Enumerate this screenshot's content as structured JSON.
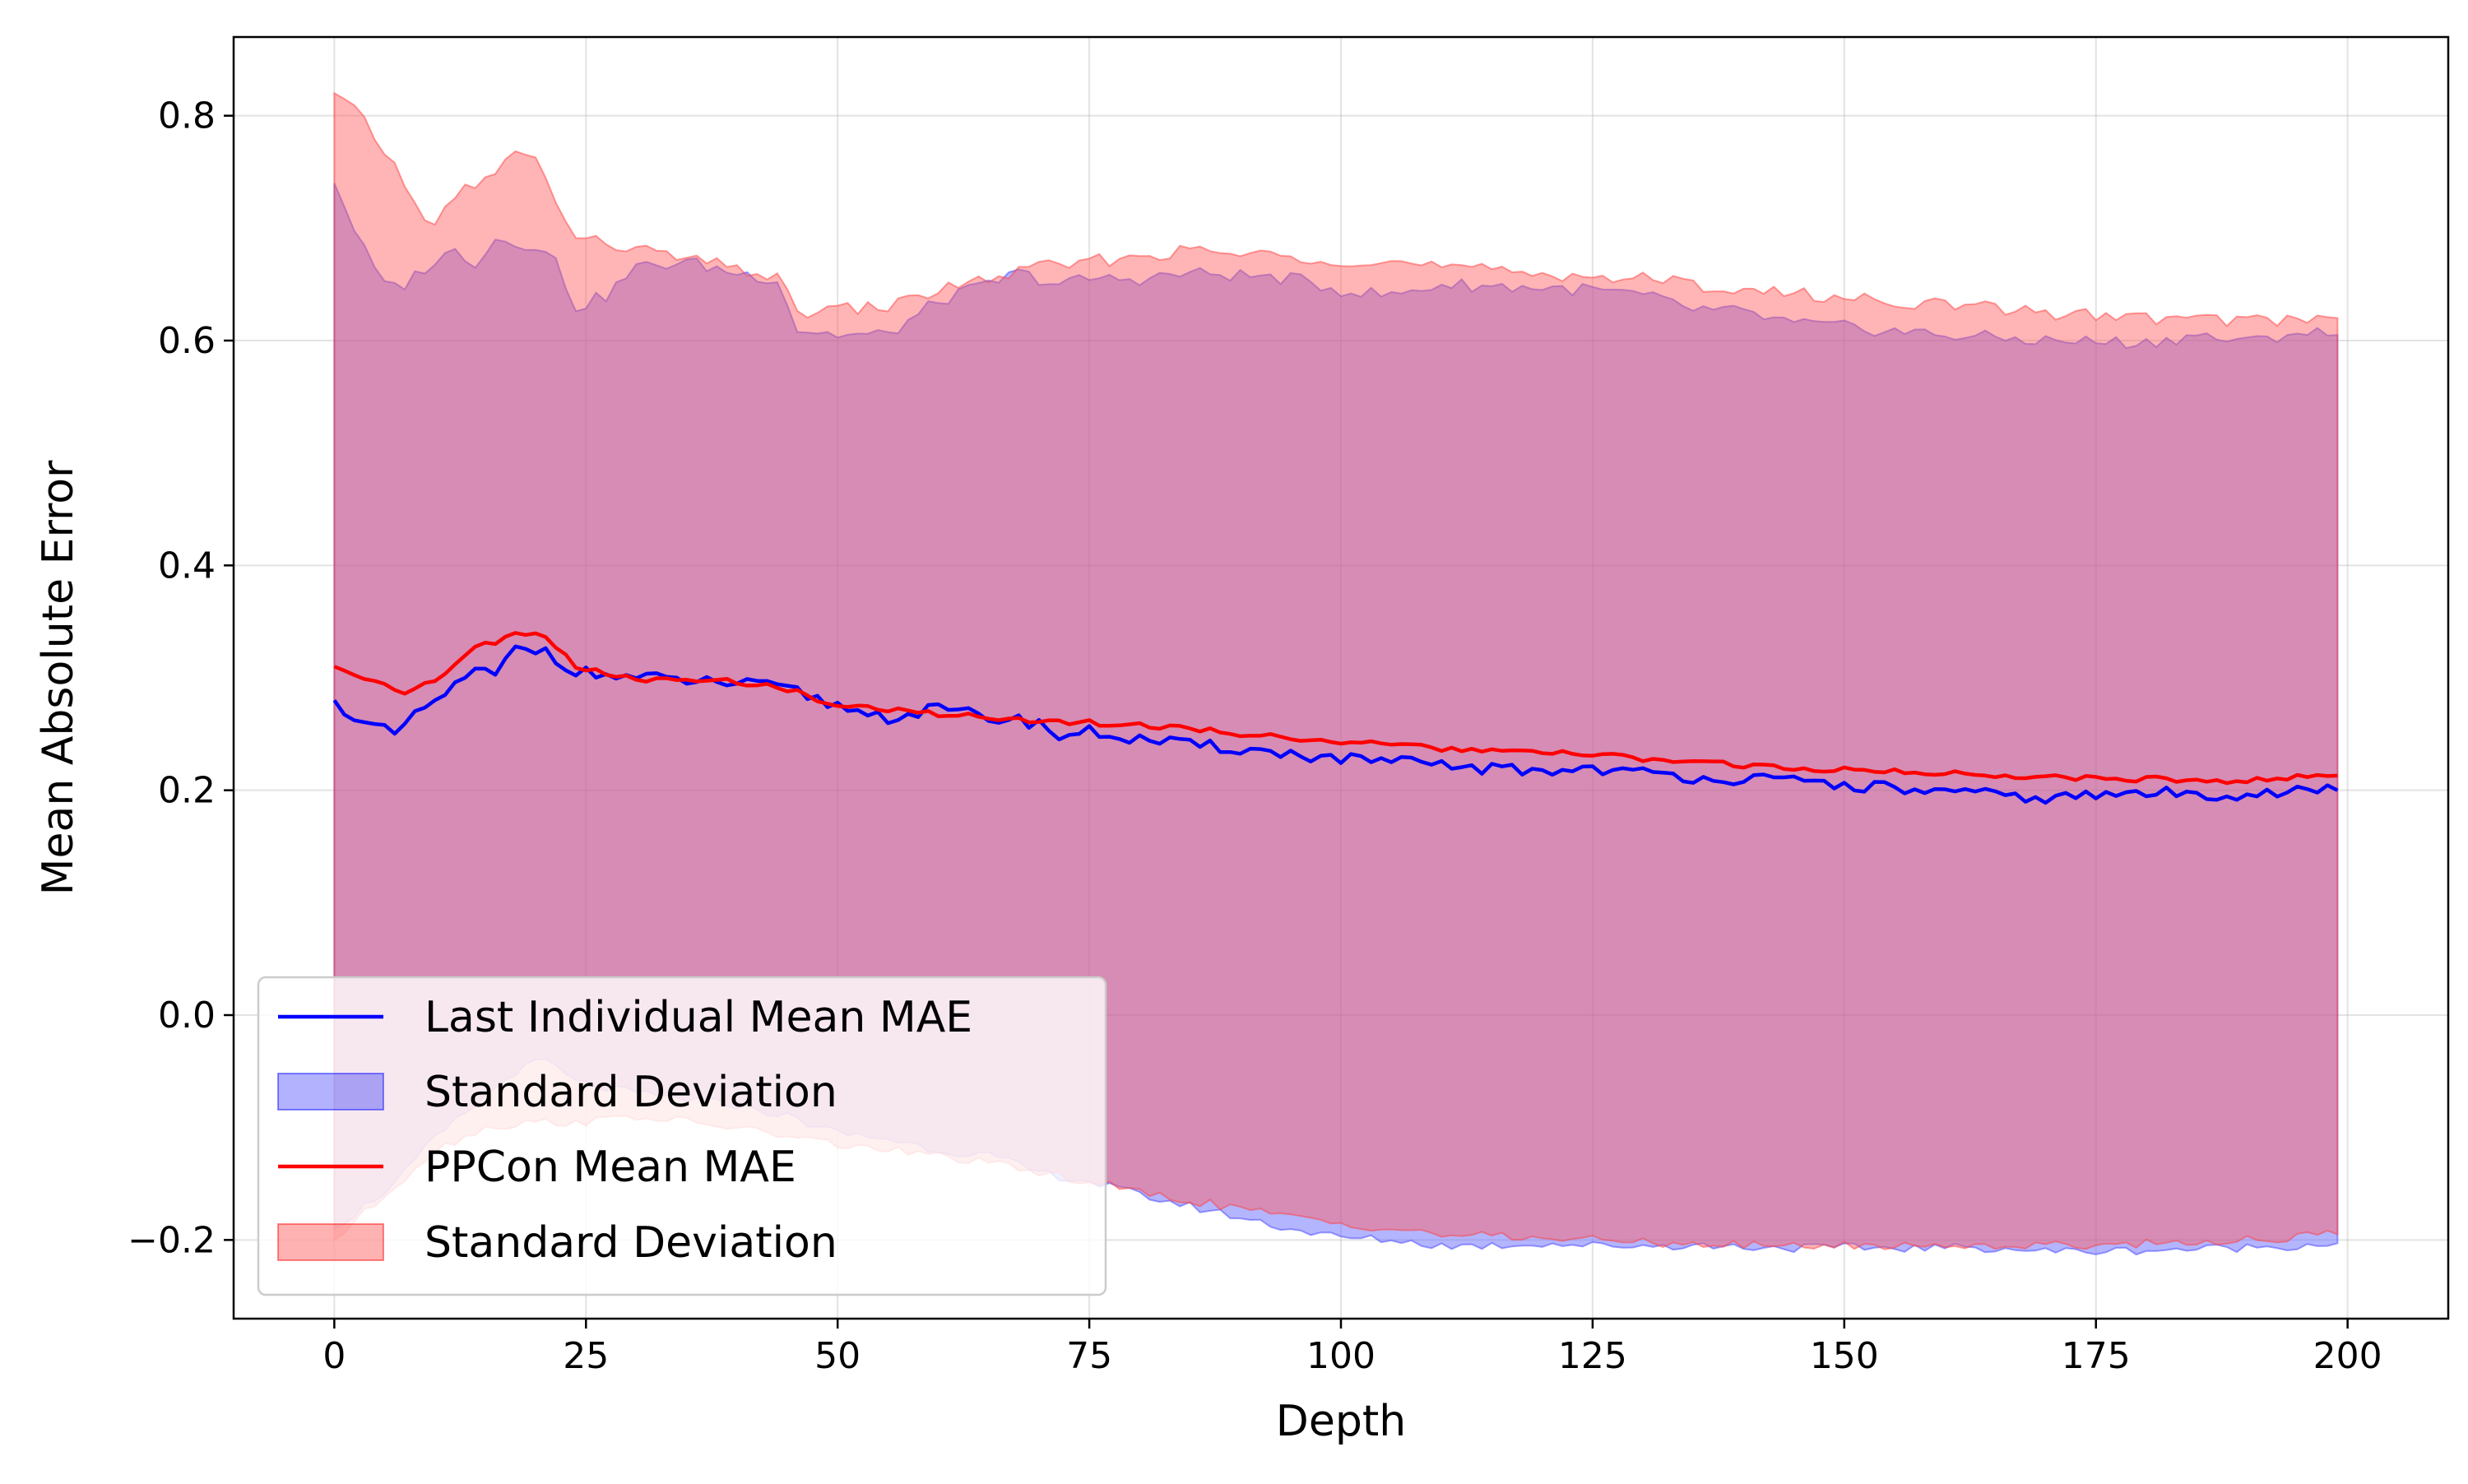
{
  "chart_data": {
    "type": "area",
    "title": "",
    "xlabel": "Depth",
    "ylabel": "Mean Absolute Error",
    "xlim": [
      -10,
      210
    ],
    "ylim": [
      -0.27,
      0.87
    ],
    "xticks": [
      0,
      25,
      50,
      75,
      100,
      125,
      150,
      175,
      200
    ],
    "xtick_labels": [
      "0",
      "25",
      "50",
      "75",
      "100",
      "125",
      "150",
      "175",
      "200"
    ],
    "yticks": [
      -0.2,
      0.0,
      0.2,
      0.4,
      0.6,
      0.8
    ],
    "ytick_labels": [
      "−0.2",
      "0.0",
      "0.2",
      "0.4",
      "0.6",
      "0.8"
    ],
    "grid": true,
    "legend_position": "lower-left",
    "legend": [
      {
        "label": "Last Individual Mean MAE",
        "kind": "line",
        "color": "#0000ff"
      },
      {
        "label": "Standard Deviation",
        "kind": "patch",
        "color": "#0000ff"
      },
      {
        "label": "PPCon Mean MAE",
        "kind": "line",
        "color": "#ff0000"
      },
      {
        "label": "Standard Deviation",
        "kind": "patch",
        "color": "#ff0000"
      }
    ],
    "x_range": [
      0,
      199
    ],
    "series": [
      {
        "name": "Last Individual Mean MAE",
        "color": "#0000ff",
        "mean_knots": [
          [
            0,
            0.28
          ],
          [
            3,
            0.258
          ],
          [
            6,
            0.25
          ],
          [
            10,
            0.28
          ],
          [
            14,
            0.305
          ],
          [
            16,
            0.303
          ],
          [
            18,
            0.325
          ],
          [
            21,
            0.325
          ],
          [
            24,
            0.305
          ],
          [
            30,
            0.3
          ],
          [
            40,
            0.295
          ],
          [
            45,
            0.29
          ],
          [
            50,
            0.275
          ],
          [
            55,
            0.265
          ],
          [
            60,
            0.272
          ],
          [
            65,
            0.265
          ],
          [
            70,
            0.26
          ],
          [
            72,
            0.248
          ],
          [
            75,
            0.252
          ],
          [
            80,
            0.245
          ],
          [
            85,
            0.24
          ],
          [
            90,
            0.237
          ],
          [
            95,
            0.232
          ],
          [
            100,
            0.228
          ],
          [
            105,
            0.225
          ],
          [
            110,
            0.222
          ],
          [
            115,
            0.219
          ],
          [
            120,
            0.217
          ],
          [
            125,
            0.22
          ],
          [
            130,
            0.215
          ],
          [
            135,
            0.212
          ],
          [
            140,
            0.21
          ],
          [
            150,
            0.205
          ],
          [
            160,
            0.198
          ],
          [
            170,
            0.193
          ],
          [
            175,
            0.195
          ],
          [
            180,
            0.198
          ],
          [
            185,
            0.196
          ],
          [
            190,
            0.197
          ],
          [
            199,
            0.2
          ]
        ],
        "sd_upper_knots": [
          [
            0,
            0.74
          ],
          [
            3,
            0.68
          ],
          [
            5,
            0.648
          ],
          [
            7,
            0.65
          ],
          [
            9,
            0.665
          ],
          [
            12,
            0.68
          ],
          [
            14,
            0.67
          ],
          [
            16,
            0.69
          ],
          [
            20,
            0.685
          ],
          [
            22,
            0.67
          ],
          [
            24,
            0.63
          ],
          [
            27,
            0.64
          ],
          [
            30,
            0.665
          ],
          [
            35,
            0.67
          ],
          [
            40,
            0.66
          ],
          [
            44,
            0.655
          ],
          [
            46,
            0.61
          ],
          [
            50,
            0.605
          ],
          [
            55,
            0.605
          ],
          [
            60,
            0.635
          ],
          [
            65,
            0.65
          ],
          [
            68,
            0.66
          ],
          [
            72,
            0.65
          ],
          [
            75,
            0.655
          ],
          [
            80,
            0.655
          ],
          [
            85,
            0.66
          ],
          [
            90,
            0.658
          ],
          [
            95,
            0.655
          ],
          [
            100,
            0.645
          ],
          [
            105,
            0.64
          ],
          [
            110,
            0.65
          ],
          [
            120,
            0.647
          ],
          [
            125,
            0.645
          ],
          [
            130,
            0.64
          ],
          [
            135,
            0.628
          ],
          [
            140,
            0.625
          ],
          [
            145,
            0.615
          ],
          [
            150,
            0.612
          ],
          [
            160,
            0.605
          ],
          [
            170,
            0.6
          ],
          [
            180,
            0.598
          ],
          [
            185,
            0.605
          ],
          [
            190,
            0.598
          ],
          [
            195,
            0.608
          ],
          [
            199,
            0.605
          ]
        ],
        "sd_lower_knots": [
          [
            0,
            -0.19
          ],
          [
            3,
            -0.17
          ],
          [
            6,
            -0.15
          ],
          [
            10,
            -0.11
          ],
          [
            14,
            -0.08
          ],
          [
            18,
            -0.05
          ],
          [
            21,
            -0.04
          ],
          [
            24,
            -0.06
          ],
          [
            30,
            -0.07
          ],
          [
            40,
            -0.08
          ],
          [
            45,
            -0.09
          ],
          [
            50,
            -0.105
          ],
          [
            55,
            -0.11
          ],
          [
            60,
            -0.12
          ],
          [
            65,
            -0.125
          ],
          [
            70,
            -0.14
          ],
          [
            75,
            -0.148
          ],
          [
            80,
            -0.16
          ],
          [
            85,
            -0.17
          ],
          [
            90,
            -0.18
          ],
          [
            95,
            -0.19
          ],
          [
            100,
            -0.198
          ],
          [
            105,
            -0.2
          ],
          [
            110,
            -0.205
          ],
          [
            115,
            -0.205
          ],
          [
            120,
            -0.203
          ],
          [
            125,
            -0.205
          ],
          [
            135,
            -0.205
          ],
          [
            145,
            -0.207
          ],
          [
            155,
            -0.207
          ],
          [
            165,
            -0.207
          ],
          [
            170,
            -0.21
          ],
          [
            175,
            -0.21
          ],
          [
            185,
            -0.208
          ],
          [
            195,
            -0.205
          ],
          [
            199,
            -0.203
          ]
        ]
      },
      {
        "name": "PPCon Mean MAE",
        "color": "#ff0000",
        "mean_knots": [
          [
            0,
            0.31
          ],
          [
            3,
            0.3
          ],
          [
            7,
            0.288
          ],
          [
            10,
            0.296
          ],
          [
            14,
            0.328
          ],
          [
            16,
            0.332
          ],
          [
            18,
            0.342
          ],
          [
            21,
            0.335
          ],
          [
            24,
            0.31
          ],
          [
            30,
            0.298
          ],
          [
            40,
            0.297
          ],
          [
            45,
            0.29
          ],
          [
            50,
            0.275
          ],
          [
            55,
            0.272
          ],
          [
            60,
            0.268
          ],
          [
            65,
            0.265
          ],
          [
            70,
            0.262
          ],
          [
            75,
            0.26
          ],
          [
            80,
            0.258
          ],
          [
            85,
            0.255
          ],
          [
            90,
            0.25
          ],
          [
            95,
            0.247
          ],
          [
            100,
            0.243
          ],
          [
            105,
            0.24
          ],
          [
            110,
            0.237
          ],
          [
            120,
            0.233
          ],
          [
            125,
            0.232
          ],
          [
            130,
            0.228
          ],
          [
            135,
            0.225
          ],
          [
            140,
            0.222
          ],
          [
            150,
            0.218
          ],
          [
            160,
            0.215
          ],
          [
            170,
            0.212
          ],
          [
            180,
            0.21
          ],
          [
            190,
            0.208
          ],
          [
            195,
            0.212
          ],
          [
            199,
            0.213
          ]
        ],
        "sd_upper_knots": [
          [
            0,
            0.82
          ],
          [
            3,
            0.795
          ],
          [
            6,
            0.755
          ],
          [
            8,
            0.72
          ],
          [
            10,
            0.705
          ],
          [
            13,
            0.735
          ],
          [
            16,
            0.745
          ],
          [
            18,
            0.772
          ],
          [
            20,
            0.76
          ],
          [
            22,
            0.725
          ],
          [
            24,
            0.69
          ],
          [
            28,
            0.685
          ],
          [
            32,
            0.678
          ],
          [
            36,
            0.67
          ],
          [
            40,
            0.665
          ],
          [
            44,
            0.655
          ],
          [
            46,
            0.625
          ],
          [
            50,
            0.628
          ],
          [
            55,
            0.63
          ],
          [
            60,
            0.645
          ],
          [
            65,
            0.655
          ],
          [
            70,
            0.665
          ],
          [
            75,
            0.67
          ],
          [
            80,
            0.675
          ],
          [
            85,
            0.68
          ],
          [
            90,
            0.677
          ],
          [
            95,
            0.675
          ],
          [
            100,
            0.672
          ],
          [
            105,
            0.67
          ],
          [
            110,
            0.665
          ],
          [
            115,
            0.662
          ],
          [
            120,
            0.66
          ],
          [
            125,
            0.657
          ],
          [
            130,
            0.655
          ],
          [
            135,
            0.65
          ],
          [
            140,
            0.645
          ],
          [
            150,
            0.638
          ],
          [
            160,
            0.632
          ],
          [
            170,
            0.625
          ],
          [
            180,
            0.62
          ],
          [
            190,
            0.618
          ],
          [
            199,
            0.62
          ]
        ],
        "sd_lower_knots": [
          [
            0,
            -0.2
          ],
          [
            5,
            -0.16
          ],
          [
            10,
            -0.12
          ],
          [
            15,
            -0.1
          ],
          [
            20,
            -0.095
          ],
          [
            25,
            -0.095
          ],
          [
            30,
            -0.09
          ],
          [
            35,
            -0.095
          ],
          [
            40,
            -0.1
          ],
          [
            45,
            -0.108
          ],
          [
            50,
            -0.115
          ],
          [
            55,
            -0.12
          ],
          [
            60,
            -0.125
          ],
          [
            65,
            -0.132
          ],
          [
            70,
            -0.14
          ],
          [
            75,
            -0.148
          ],
          [
            80,
            -0.158
          ],
          [
            85,
            -0.165
          ],
          [
            90,
            -0.172
          ],
          [
            95,
            -0.18
          ],
          [
            100,
            -0.185
          ],
          [
            105,
            -0.19
          ],
          [
            110,
            -0.195
          ],
          [
            115,
            -0.197
          ],
          [
            120,
            -0.198
          ],
          [
            125,
            -0.2
          ],
          [
            130,
            -0.202
          ],
          [
            135,
            -0.203
          ],
          [
            140,
            -0.205
          ],
          [
            150,
            -0.205
          ],
          [
            160,
            -0.205
          ],
          [
            170,
            -0.205
          ],
          [
            180,
            -0.203
          ],
          [
            190,
            -0.2
          ],
          [
            199,
            -0.195
          ]
        ]
      }
    ]
  }
}
